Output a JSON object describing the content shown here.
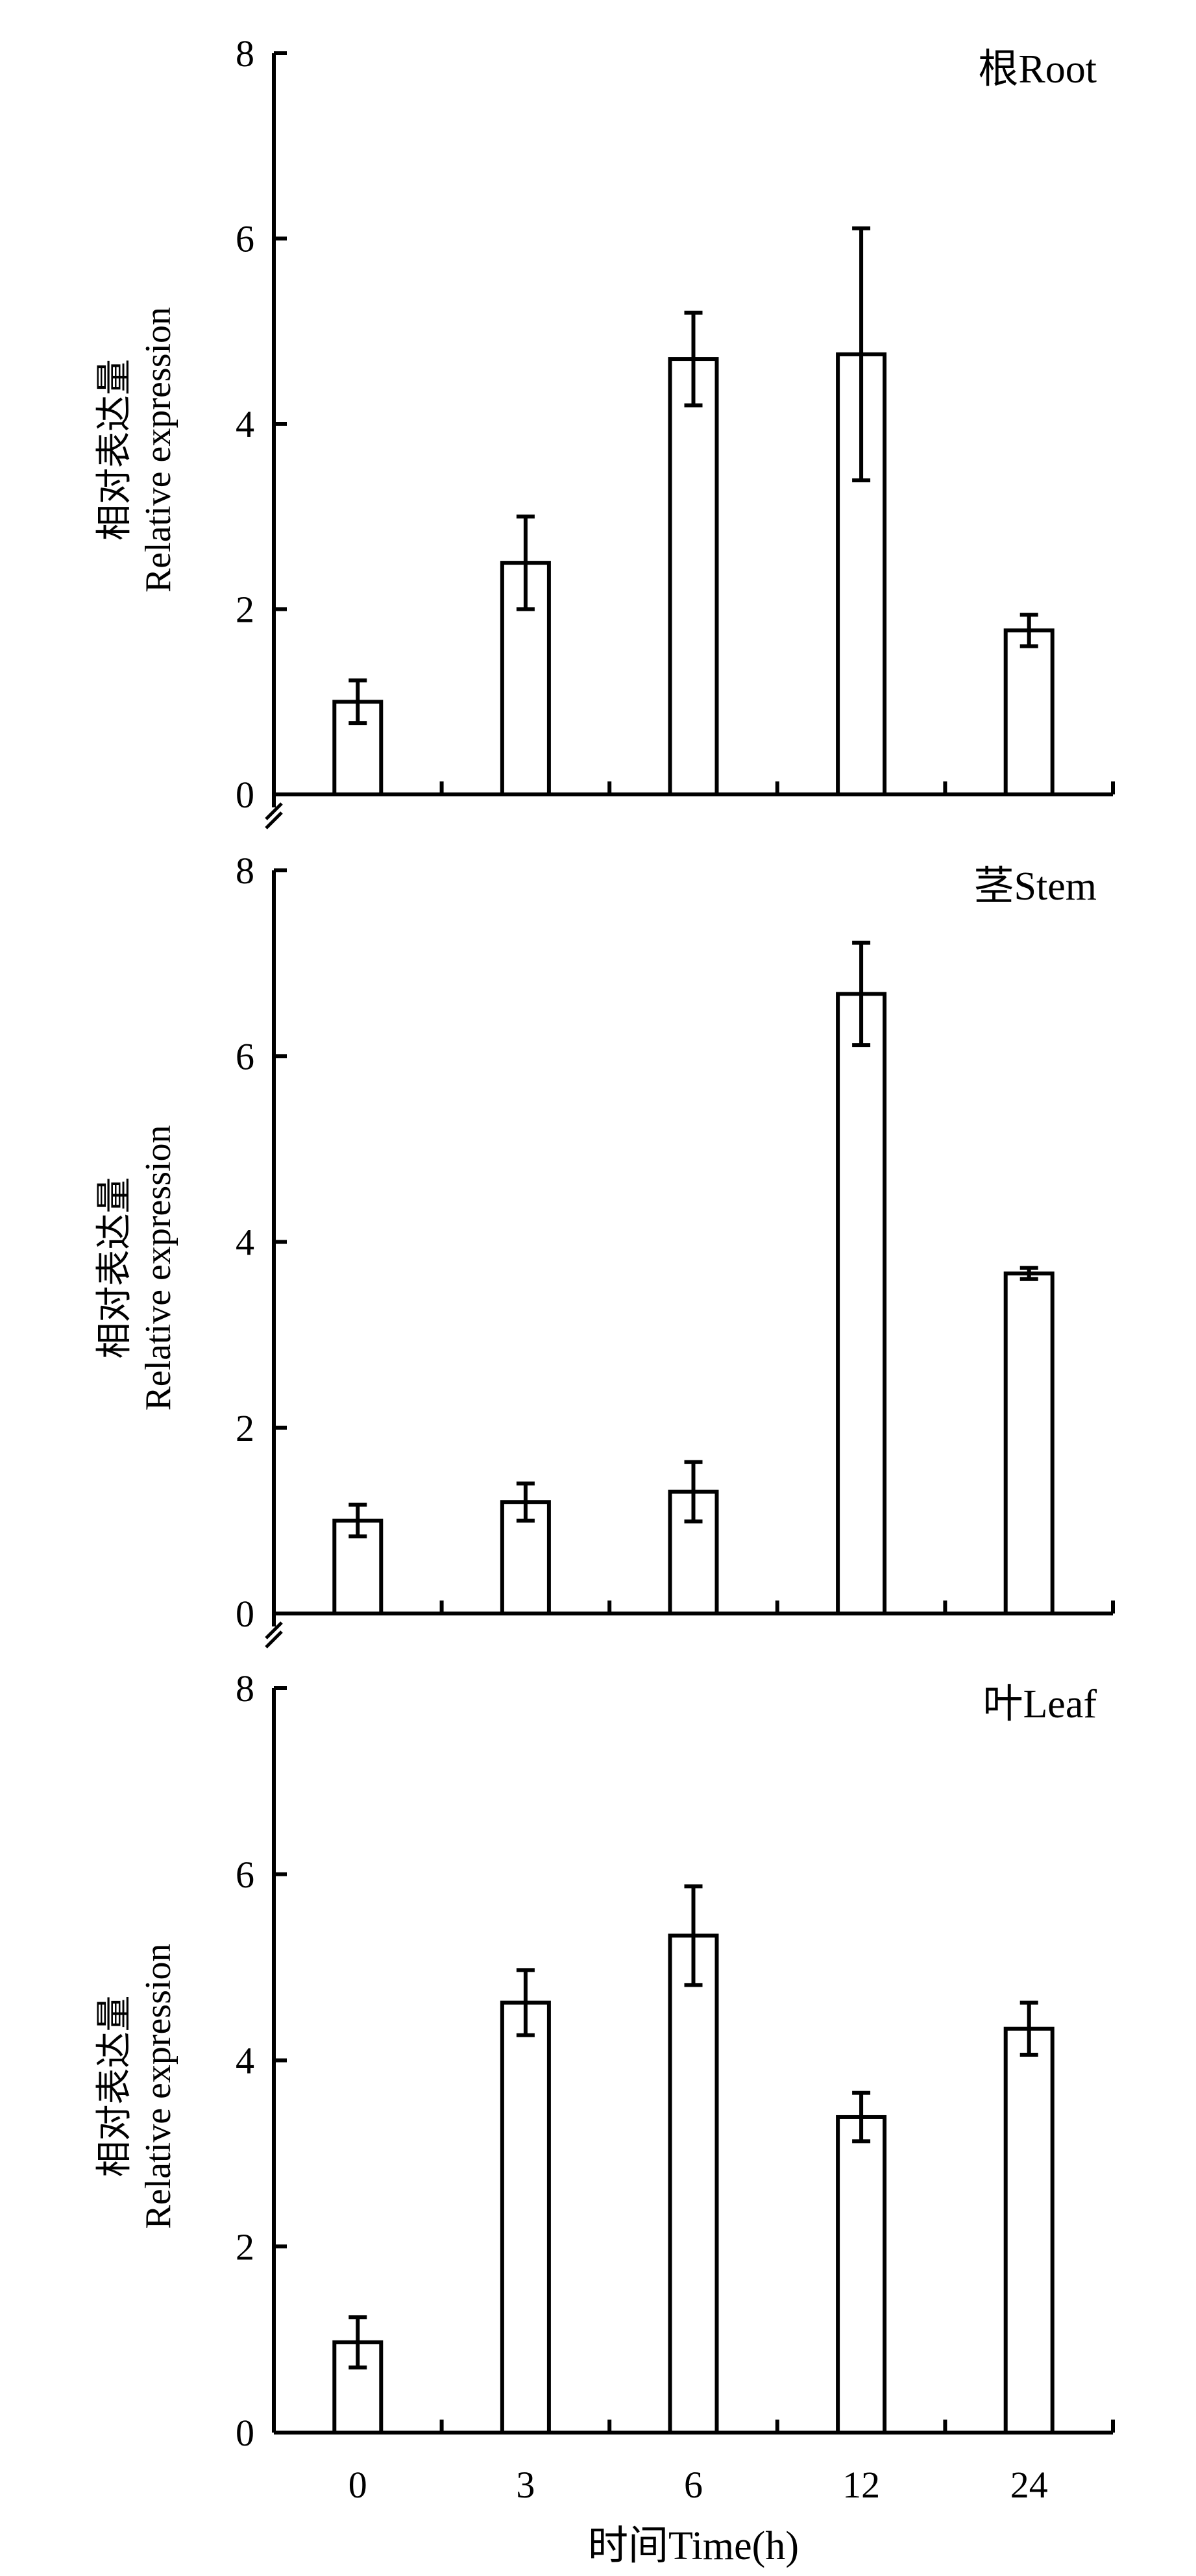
{
  "chart_data": {
    "type": "bar",
    "categories": [
      "0",
      "3",
      "6",
      "12",
      "24"
    ],
    "xlabel": "时间Time(h)",
    "ylabel_cn": "相对表达量",
    "ylabel_en": "Relative expression",
    "ylim": [
      0,
      8
    ],
    "yticks": [
      "0",
      "2",
      "4",
      "6",
      "8"
    ],
    "grid": false,
    "bar_fill": "#ffffff",
    "bar_stroke": "#000000",
    "panels": [
      {
        "label": "根Root",
        "values": [
          1.0,
          2.5,
          4.7,
          4.75,
          1.77
        ],
        "errors": [
          0.23,
          0.5,
          0.5,
          1.36,
          0.17
        ]
      },
      {
        "label": "茎Stem",
        "values": [
          1.0,
          1.2,
          1.31,
          6.67,
          3.66
        ],
        "errors": [
          0.17,
          0.2,
          0.32,
          0.55,
          0.06
        ]
      },
      {
        "label": "叶Leaf",
        "values": [
          0.97,
          4.62,
          5.34,
          3.39,
          4.34
        ],
        "errors": [
          0.27,
          0.35,
          0.53,
          0.26,
          0.28
        ]
      }
    ]
  }
}
